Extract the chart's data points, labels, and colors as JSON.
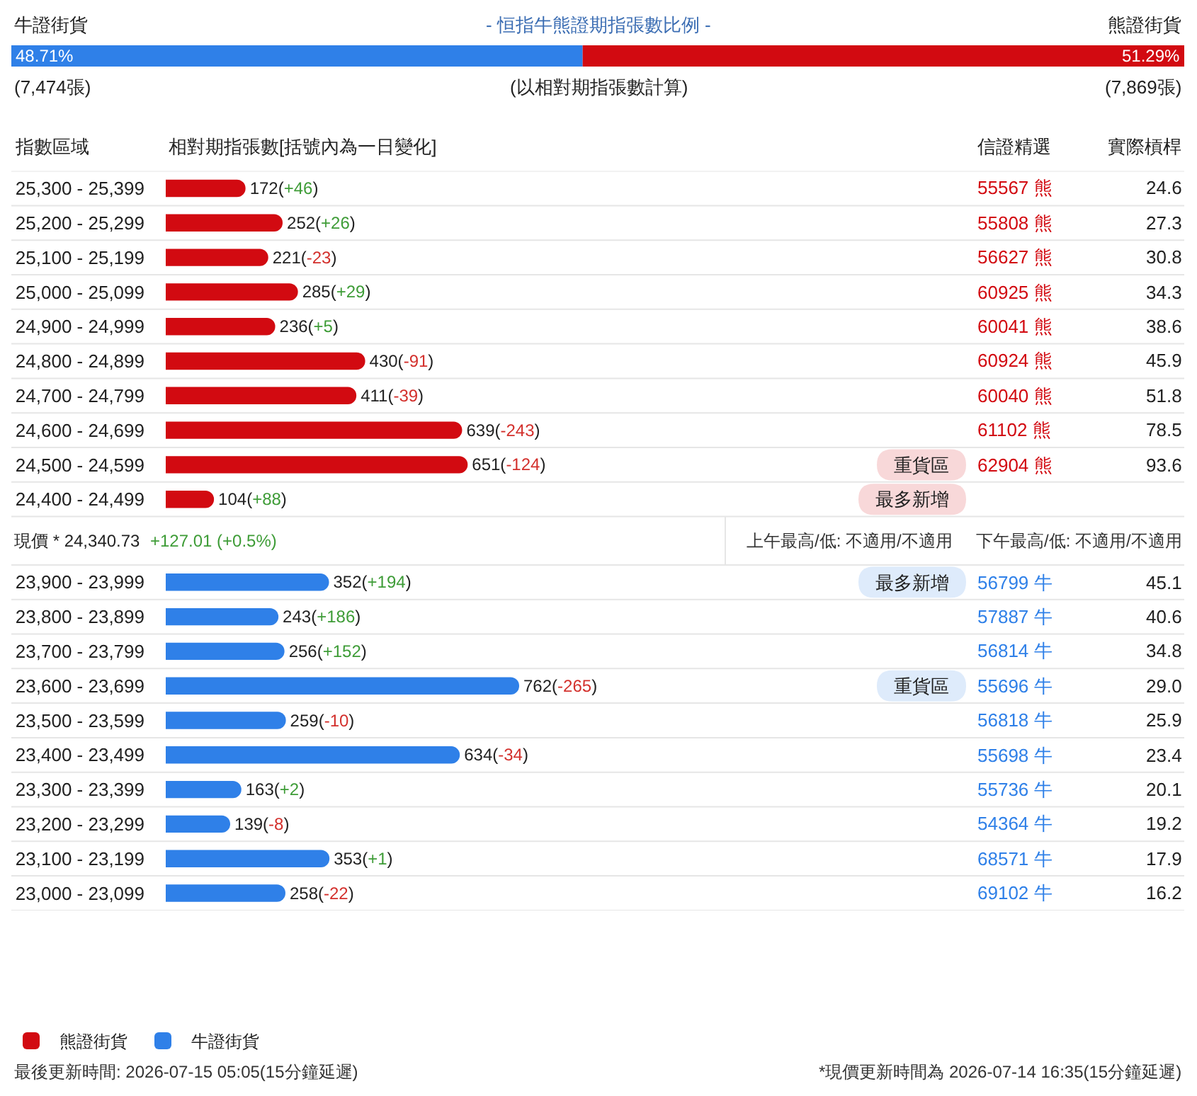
{
  "chart_data": [
    {
      "type": "bar",
      "title": "- 恒指牛熊證期指張數比例 -",
      "orientation": "horizontal",
      "stacked": true,
      "categories": [
        null
      ],
      "xlim": [
        0,
        100
      ],
      "tick_labels": false,
      "series": [
        {
          "name": "牛證街貨",
          "color": "#2f80e8",
          "values": [
            48.71
          ],
          "value_labels": [
            "48.71%"
          ]
        },
        {
          "name": "熊證街貨",
          "color": "#d20a11",
          "values": [
            51.29
          ],
          "value_labels": [
            "51.29%"
          ]
        }
      ],
      "annotations": [
        "(7,474張)",
        "(以相對期指張數計算)",
        "(7,869張)"
      ]
    },
    {
      "type": "bar",
      "orientation": "horizontal",
      "ylabel": "指數區域",
      "xlabel": "相對期指張數[括號內為一日變化]",
      "tick_labels": "y",
      "legend": "bottom left",
      "categories": [
        "25,300 - 25,399",
        "25,200 - 25,299",
        "25,100 - 25,199",
        "25,000 - 25,099",
        "24,900 - 24,999",
        "24,800 - 24,899",
        "24,700 - 24,799",
        "24,600 - 24,699",
        "24,500 - 24,599",
        "24,400 - 24,499",
        "23,900 - 23,999",
        "23,800 - 23,899",
        "23,700 - 23,799",
        "23,600 - 23,699",
        "23,500 - 23,599",
        "23,400 - 23,499",
        "23,300 - 23,399",
        "23,200 - 23,299",
        "23,100 - 23,199",
        "23,000 - 23,099"
      ],
      "series": [
        {
          "name": "熊證街貨",
          "color": "#d20a11",
          "values": [
            172,
            252,
            221,
            285,
            236,
            430,
            411,
            639,
            651,
            104,
            null,
            null,
            null,
            null,
            null,
            null,
            null,
            null,
            null,
            null
          ],
          "value_labels": [
            "172(+46)",
            "252(+26)",
            "221(-23)",
            "285(+29)",
            "236(+5)",
            "430(-91)",
            "411(-39)",
            "639(-243)",
            "651(-124)",
            "104(+88)",
            null,
            null,
            null,
            null,
            null,
            null,
            null,
            null,
            null,
            null
          ]
        },
        {
          "name": "牛證街貨",
          "color": "#2f80e8",
          "values": [
            null,
            null,
            null,
            null,
            null,
            null,
            null,
            null,
            null,
            null,
            352,
            243,
            256,
            762,
            259,
            634,
            163,
            139,
            353,
            258
          ],
          "value_labels": [
            null,
            null,
            null,
            null,
            null,
            null,
            null,
            null,
            null,
            null,
            "352(+194)",
            "243(+186)",
            "256(+152)",
            "762(-265)",
            "259(-10)",
            "634(-34)",
            "163(+2)",
            "139(-8)",
            "353(+1)",
            "258(-22)"
          ]
        }
      ],
      "annotations": [
        "現價 * 24,340.73",
        "+127.01 (+0.5%)",
        "上午最高/低: 不適用/不適用",
        "下午最高/低: 不適用/不適用",
        "最後更新時間: 2026-07-15 05:05(15分鐘延遲)",
        "*現價更新時間為 2026-07-14 16:35(15分鐘延遲)"
      ]
    },
    {
      "type": "other",
      "categories": [
        null,
        "信證精選",
        "實際槓桿"
      ],
      "cell_labels": [
        [
          null,
          "55567 熊",
          "24.6"
        ],
        [
          null,
          "55808 熊",
          "27.3"
        ],
        [
          null,
          "56627 熊",
          "30.8"
        ],
        [
          null,
          "60925 熊",
          "34.3"
        ],
        [
          null,
          "60041 熊",
          "38.6"
        ],
        [
          null,
          "60924 熊",
          "45.9"
        ],
        [
          null,
          "60040 熊",
          "51.8"
        ],
        [
          null,
          "61102 熊",
          "78.5"
        ],
        [
          "重貨區",
          "62904 熊",
          "93.6"
        ],
        [
          "最多新增",
          null,
          null
        ],
        [
          "最多新增",
          "56799 牛",
          "45.1"
        ],
        [
          null,
          "57887 牛",
          "40.6"
        ],
        [
          null,
          "56814 牛",
          "34.8"
        ],
        [
          "重貨區",
          "55696 牛",
          "29.0"
        ],
        [
          null,
          "56818 牛",
          "25.9"
        ],
        [
          null,
          "55698 牛",
          "23.4"
        ],
        [
          null,
          "55736 牛",
          "20.1"
        ],
        [
          null,
          "54364 牛",
          "19.2"
        ],
        [
          null,
          "68571 牛",
          "17.9"
        ],
        [
          null,
          "69102 牛",
          "16.2"
        ]
      ]
    }
  ]
}
